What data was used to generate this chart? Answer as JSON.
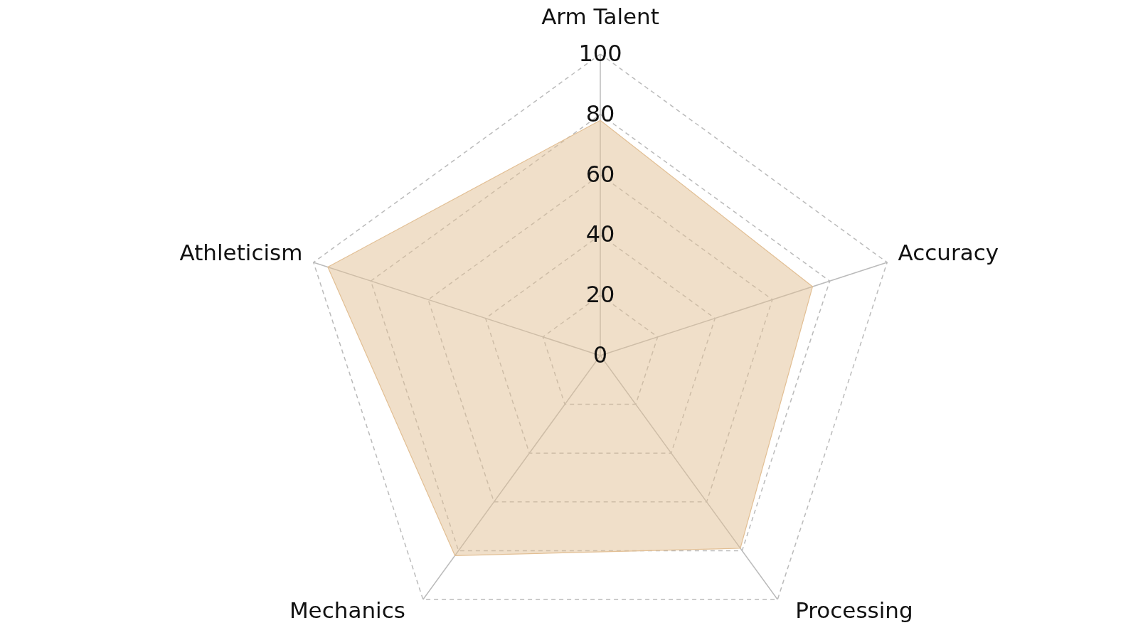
{
  "chart_data": {
    "type": "radar",
    "categories": [
      "Arm Talent",
      "Accuracy",
      "Processing",
      "Mechanics",
      "Athleticism"
    ],
    "series": [
      {
        "color": "#e2bf94",
        "values": [
          78,
          74,
          79,
          82,
          95
        ]
      }
    ],
    "ylim": [
      0,
      100
    ],
    "yticks": [
      0,
      20,
      40,
      60,
      80,
      100
    ],
    "grid": true
  }
}
